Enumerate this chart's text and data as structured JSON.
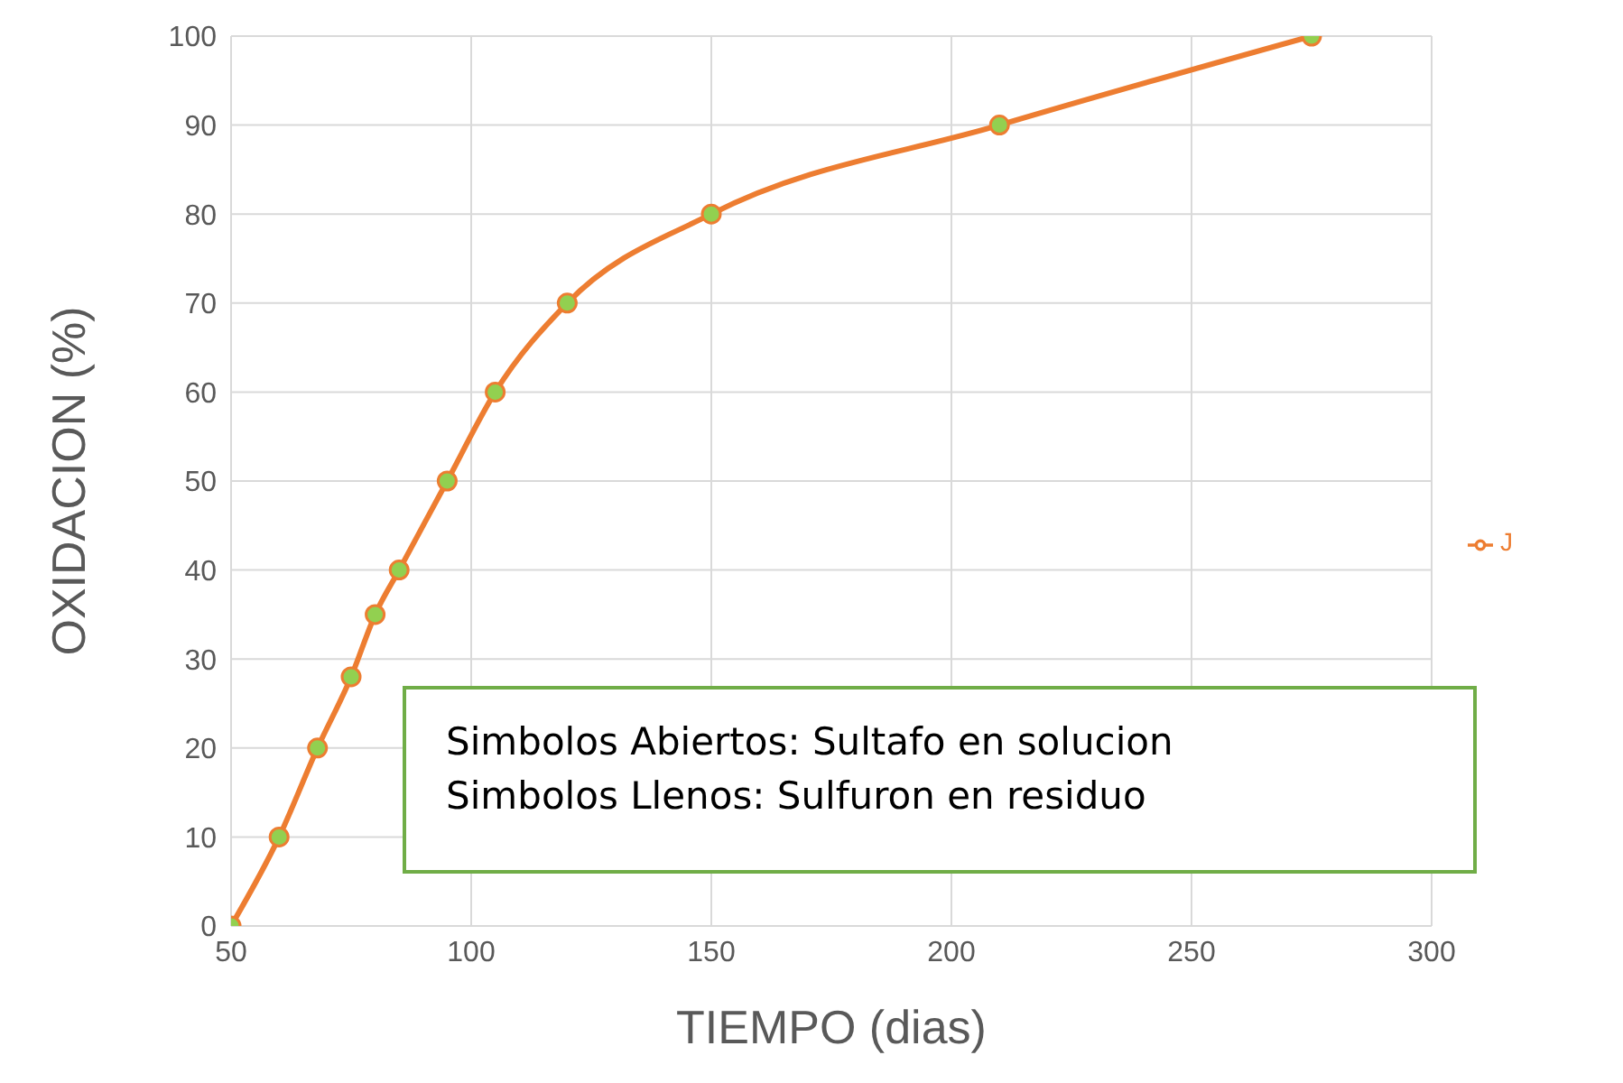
{
  "chart_data": {
    "type": "line",
    "xlabel": "TIEMPO (dias)",
    "ylabel": "OXIDACION (%)",
    "x": [
      50,
      60,
      68,
      75,
      80,
      85,
      95,
      105,
      120,
      150,
      210,
      275
    ],
    "series": [
      {
        "name": "J",
        "color": "#ed7d31",
        "values": [
          0,
          10,
          20,
          28,
          35,
          40,
          50,
          60,
          70,
          80,
          90,
          100
        ]
      }
    ],
    "xlim": [
      50,
      300
    ],
    "xticks": [
      50,
      100,
      150,
      200,
      250,
      300
    ],
    "ylim": [
      0,
      100
    ],
    "yticks": [
      0,
      10,
      20,
      30,
      40,
      50,
      60,
      70,
      80,
      90,
      100
    ],
    "grid": true,
    "legend": "right",
    "marker": "circle",
    "annotations": [
      "Simbolos Abiertos: Sultafo en solucion",
      "Simbolos Llenos: Sulfuron en residuo"
    ]
  }
}
